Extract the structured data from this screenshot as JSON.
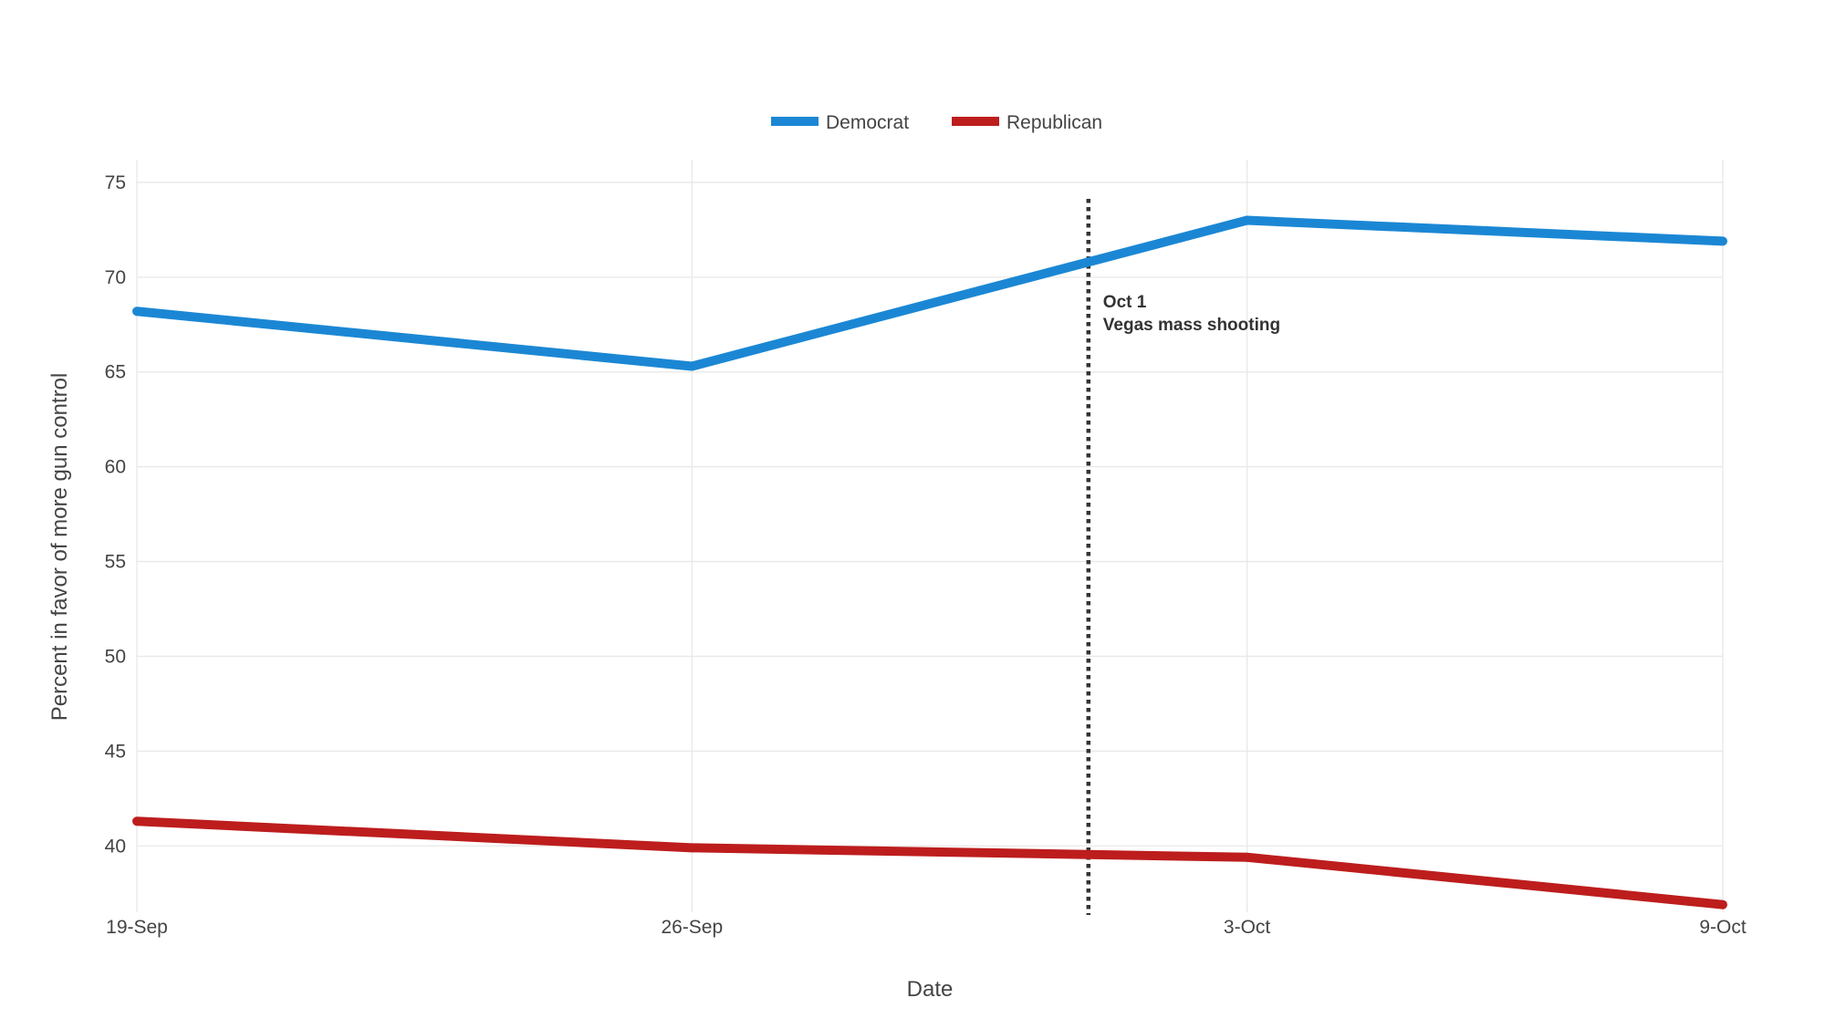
{
  "chart_data": {
    "type": "line",
    "x": [
      "19-Sep",
      "26-Sep",
      "3-Oct",
      "9-Oct"
    ],
    "x_days": [
      0,
      7,
      14,
      20
    ],
    "xlabel": "Date",
    "ylabel": "Percent in favor of more gun control",
    "ylim": [
      36.5,
      76.2
    ],
    "yticks": [
      40,
      45,
      50,
      55,
      60,
      65,
      70,
      75
    ],
    "grid": true,
    "legend_position": "top-center",
    "series": [
      {
        "name": "Democrat",
        "color": "#1b87d4",
        "values": [
          68.2,
          65.3,
          73.0,
          71.9
        ]
      },
      {
        "name": "Republican",
        "color": "#bd1d1d",
        "values": [
          41.3,
          39.9,
          39.4,
          36.9
        ]
      }
    ],
    "annotation": {
      "x_day": 12,
      "line1": "Oct 1",
      "line2": "Vegas mass shooting",
      "line_style": "dotted",
      "color": "#333333"
    }
  }
}
